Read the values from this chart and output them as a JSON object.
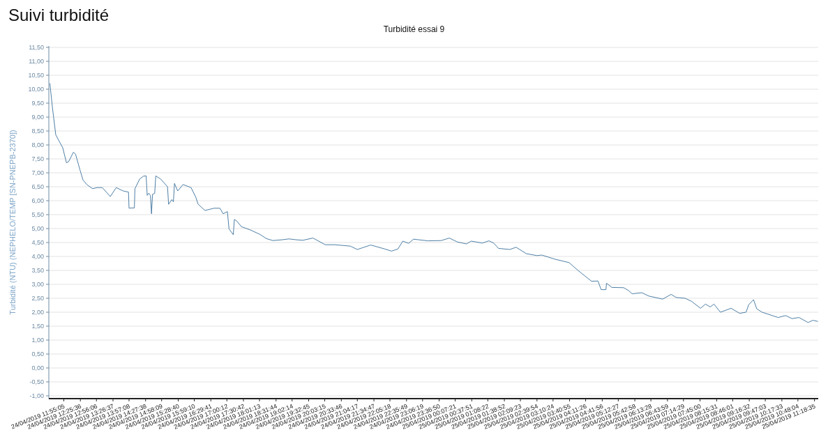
{
  "chart_data": {
    "type": "line",
    "title": "Suivi turbidité",
    "subtitle": "Turbidité essai 9",
    "ylabel": "Turbidité (NTU) (NEPHELO/TEMP [SN-PNEPB-2370])",
    "series": [
      {
        "color": "#4f7fa6",
        "x": [
          "2019-04-24T11:29",
          "2019-04-24T11:34",
          "2019-04-24T11:40",
          "2019-04-24T11:53",
          "2019-04-24T12:00",
          "2019-04-24T12:04",
          "2019-04-24T12:13",
          "2019-04-24T12:17",
          "2019-04-24T12:25",
          "2019-04-24T12:31",
          "2019-04-24T12:38",
          "2019-04-24T12:49",
          "2019-04-24T12:57",
          "2019-04-24T13:07",
          "2019-04-24T13:22",
          "2019-04-24T13:33",
          "2019-04-24T13:46",
          "2019-04-24T13:56",
          "2019-04-24T13:57",
          "2019-04-24T14:01",
          "2019-04-24T14:07",
          "2019-04-24T14:08",
          "2019-04-24T14:17",
          "2019-04-24T14:24",
          "2019-04-24T14:29",
          "2019-04-24T14:31",
          "2019-04-24T14:34",
          "2019-04-24T14:37",
          "2019-04-24T14:39",
          "2019-04-24T14:41",
          "2019-04-24T14:45",
          "2019-04-24T14:47",
          "2019-04-24T14:56",
          "2019-04-24T15:09",
          "2019-04-24T15:11",
          "2019-04-24T15:17",
          "2019-04-24T15:20",
          "2019-04-24T15:22",
          "2019-04-24T15:28",
          "2019-04-24T15:38",
          "2019-04-24T15:49",
          "2019-04-24T15:53",
          "2019-04-24T16:02",
          "2019-04-24T16:06",
          "2019-04-24T16:19",
          "2019-04-24T16:36",
          "2019-04-24T16:47",
          "2019-04-24T16:53",
          "2019-04-24T17:01",
          "2019-04-24T17:04",
          "2019-04-24T17:12",
          "2019-04-24T17:14",
          "2019-04-24T17:19",
          "2019-04-24T17:27",
          "2019-04-24T17:44",
          "2019-04-24T18:01",
          "2019-04-24T18:14",
          "2019-04-24T18:26",
          "2019-04-24T18:44",
          "2019-04-24T18:56",
          "2019-04-24T19:09",
          "2019-04-24T19:22",
          "2019-04-24T19:41",
          "2019-04-24T20:04",
          "2019-04-24T20:22",
          "2019-04-24T20:51",
          "2019-04-24T21:04",
          "2019-04-24T21:29",
          "2019-04-24T21:55",
          "2019-04-24T22:08",
          "2019-04-24T22:20",
          "2019-04-24T22:29",
          "2019-04-24T22:40",
          "2019-04-24T22:49",
          "2019-04-24T23:16",
          "2019-04-24T23:41",
          "2019-04-24T23:56",
          "2019-04-25T00:11",
          "2019-04-25T00:28",
          "2019-04-25T00:37",
          "2019-04-25T00:58",
          "2019-04-25T01:10",
          "2019-04-25T01:19",
          "2019-04-25T01:28",
          "2019-04-25T01:49",
          "2019-04-25T02:01",
          "2019-04-25T02:20",
          "2019-04-25T02:40",
          "2019-04-25T02:49",
          "2019-04-25T03:14",
          "2019-04-25T03:40",
          "2019-04-25T03:56",
          "2019-04-25T04:22",
          "2019-04-25T04:34",
          "2019-04-25T04:40",
          "2019-04-25T04:49",
          "2019-04-25T04:50",
          "2019-04-25T05:00",
          "2019-04-25T05:22",
          "2019-04-25T05:31",
          "2019-04-25T05:38",
          "2019-04-25T05:56",
          "2019-04-25T06:09",
          "2019-04-25T06:35",
          "2019-04-25T06:51",
          "2019-04-25T07:00",
          "2019-04-25T07:17",
          "2019-04-25T07:29",
          "2019-04-25T07:46",
          "2019-04-25T07:55",
          "2019-04-25T08:04",
          "2019-04-25T08:11",
          "2019-04-25T08:23",
          "2019-04-25T08:43",
          "2019-04-25T08:59",
          "2019-04-25T09:11",
          "2019-04-25T09:16",
          "2019-04-25T09:25",
          "2019-04-25T09:31",
          "2019-04-25T09:41",
          "2019-04-25T10:11",
          "2019-04-25T10:25",
          "2019-04-25T10:37",
          "2019-04-25T10:50",
          "2019-04-25T11:07",
          "2019-04-25T11:16",
          "2019-04-25T11:25"
        ],
        "values": [
          10.2,
          9.3,
          8.36,
          7.9,
          7.36,
          7.4,
          7.74,
          7.67,
          7.12,
          6.74,
          6.58,
          6.43,
          6.47,
          6.47,
          6.15,
          6.47,
          6.35,
          6.31,
          5.73,
          5.74,
          5.74,
          6.43,
          6.78,
          6.88,
          6.89,
          6.19,
          6.27,
          6.19,
          5.53,
          6.23,
          6.26,
          6.89,
          6.78,
          6.5,
          5.87,
          6.04,
          5.96,
          6.62,
          6.35,
          6.58,
          6.5,
          6.47,
          6.12,
          5.88,
          5.65,
          5.73,
          5.73,
          5.53,
          5.61,
          4.99,
          4.78,
          5.33,
          5.26,
          5.07,
          4.95,
          4.8,
          4.64,
          4.57,
          4.6,
          4.63,
          4.6,
          4.58,
          4.66,
          4.42,
          4.42,
          4.37,
          4.25,
          4.41,
          4.27,
          4.19,
          4.27,
          4.55,
          4.47,
          4.62,
          4.56,
          4.57,
          4.66,
          4.52,
          4.45,
          4.55,
          4.48,
          4.56,
          4.48,
          4.29,
          4.25,
          4.33,
          4.1,
          4.03,
          4.05,
          3.9,
          3.78,
          3.51,
          3.11,
          3.12,
          2.81,
          2.81,
          3.04,
          2.89,
          2.88,
          2.78,
          2.66,
          2.7,
          2.58,
          2.47,
          2.64,
          2.53,
          2.5,
          2.39,
          2.14,
          2.29,
          2.19,
          2.29,
          2.0,
          2.14,
          1.96,
          2.0,
          2.27,
          2.45,
          2.12,
          2.0,
          1.81,
          1.88,
          1.77,
          1.81,
          1.63,
          1.71,
          1.67
        ]
      }
    ],
    "xlim": [
      "2019-04-24T11:27",
      "2019-04-25T11:26"
    ],
    "xticks": [
      {
        "value": "2019-04-24T11:55",
        "label": "24/04/2019 11:55:05"
      },
      {
        "value": "2019-04-24T12:26",
        "label": "24/04/2019 12:25:36"
      },
      {
        "value": "2019-04-24T12:56",
        "label": "24/04/2019 12:56:06"
      },
      {
        "value": "2019-04-24T13:27",
        "label": "24/04/2019 13:26:37"
      },
      {
        "value": "2019-04-24T13:57",
        "label": "24/04/2019 13:57:08"
      },
      {
        "value": "2019-04-24T14:28",
        "label": "24/04/2019 14:27:38"
      },
      {
        "value": "2019-04-24T14:58",
        "label": "24/04/2019 14:58:09"
      },
      {
        "value": "2019-04-24T15:29",
        "label": "24/04/2019 15:28:40"
      },
      {
        "value": "2019-04-24T15:59",
        "label": "24/04/2019 15:59:10"
      },
      {
        "value": "2019-04-24T16:30",
        "label": "24/04/2019 16:29:41"
      },
      {
        "value": "2019-04-24T17:00",
        "label": "24/04/2019 17:00:12"
      },
      {
        "value": "2019-04-24T17:31",
        "label": "24/04/2019 17:30:42"
      },
      {
        "value": "2019-04-24T18:01",
        "label": "24/04/2019 18:01:13"
      },
      {
        "value": "2019-04-24T18:32",
        "label": "24/04/2019 18:31:44"
      },
      {
        "value": "2019-04-24T19:02",
        "label": "24/04/2019 19:02:14"
      },
      {
        "value": "2019-04-24T19:33",
        "label": "24/04/2019 19:32:45"
      },
      {
        "value": "2019-04-24T20:03",
        "label": "24/04/2019 20:03:15"
      },
      {
        "value": "2019-04-24T20:34",
        "label": "24/04/2019 20:33:46"
      },
      {
        "value": "2019-04-24T21:04",
        "label": "24/04/2019 21:04:17"
      },
      {
        "value": "2019-04-24T21:35",
        "label": "24/04/2019 21:34:47"
      },
      {
        "value": "2019-04-24T22:05",
        "label": "24/04/2019 22:05:18"
      },
      {
        "value": "2019-04-24T22:36",
        "label": "24/04/2019 22:35:49"
      },
      {
        "value": "2019-04-24T23:06",
        "label": "24/04/2019 23:06:19"
      },
      {
        "value": "2019-04-24T23:37",
        "label": "24/04/2019 23:36:50"
      },
      {
        "value": "2019-04-25T00:07",
        "label": "25/04/2019 00:07:21"
      },
      {
        "value": "2019-04-25T00:38",
        "label": "25/04/2019 00:37:51"
      },
      {
        "value": "2019-04-25T01:08",
        "label": "25/04/2019 01:08:22"
      },
      {
        "value": "2019-04-25T01:39",
        "label": "25/04/2019 01:38:52"
      },
      {
        "value": "2019-04-25T02:09",
        "label": "25/04/2019 02:09:23"
      },
      {
        "value": "2019-04-25T02:40",
        "label": "25/04/2019 02:39:54"
      },
      {
        "value": "2019-04-25T03:10",
        "label": "25/04/2019 03:10:24"
      },
      {
        "value": "2019-04-25T03:41",
        "label": "25/04/2019 03:40:55"
      },
      {
        "value": "2019-04-25T04:11",
        "label": "25/04/2019 04:11:26"
      },
      {
        "value": "2019-04-25T04:42",
        "label": "25/04/2019 04:41:56"
      },
      {
        "value": "2019-04-25T05:12",
        "label": "25/04/2019 05:12:27"
      },
      {
        "value": "2019-04-25T05:43",
        "label": "25/04/2019 05:42:58"
      },
      {
        "value": "2019-04-25T06:13",
        "label": "25/04/2019 06:13:28"
      },
      {
        "value": "2019-04-25T06:44",
        "label": "25/04/2019 06:43:59"
      },
      {
        "value": "2019-04-25T07:14",
        "label": "25/04/2019 07:14:29"
      },
      {
        "value": "2019-04-25T07:45",
        "label": "25/04/2019 07:45:00"
      },
      {
        "value": "2019-04-25T08:16",
        "label": "25/04/2019 08:15:31"
      },
      {
        "value": "2019-04-25T08:46",
        "label": "25/04/2019 08:46:01"
      },
      {
        "value": "2019-04-25T09:17",
        "label": "25/04/2019 09:16:32"
      },
      {
        "value": "2019-04-25T09:47",
        "label": "25/04/2019 09:47:03"
      },
      {
        "value": "2019-04-25T10:18",
        "label": "25/04/2019 10:17:33"
      },
      {
        "value": "2019-04-25T10:48",
        "label": "25/04/2019 10:48:04"
      },
      {
        "value": "2019-04-25T11:19",
        "label": "25/04/2019 11:18:35"
      }
    ],
    "ylim": [
      -1.1,
      11.55
    ],
    "yticks": [
      {
        "value": -1,
        "label": "-1,00"
      },
      {
        "value": -0.5,
        "label": "-0,50"
      },
      {
        "value": 0,
        "label": "0,00"
      },
      {
        "value": 0.5,
        "label": "0,50"
      },
      {
        "value": 1,
        "label": "1,00"
      },
      {
        "value": 1.5,
        "label": "1,50"
      },
      {
        "value": 2,
        "label": "2,00"
      },
      {
        "value": 2.5,
        "label": "2,50"
      },
      {
        "value": 3,
        "label": "3,00"
      },
      {
        "value": 3.5,
        "label": "3,50"
      },
      {
        "value": 4,
        "label": "4,00"
      },
      {
        "value": 4.5,
        "label": "4,50"
      },
      {
        "value": 5,
        "label": "5,00"
      },
      {
        "value": 5.5,
        "label": "5,50"
      },
      {
        "value": 6,
        "label": "6,00"
      },
      {
        "value": 6.5,
        "label": "6,50"
      },
      {
        "value": 7,
        "label": "7,00"
      },
      {
        "value": 7.5,
        "label": "7,50"
      },
      {
        "value": 8,
        "label": "8,00"
      },
      {
        "value": 8.5,
        "label": "8,50"
      },
      {
        "value": 9,
        "label": "9,00"
      },
      {
        "value": 9.5,
        "label": "9,50"
      },
      {
        "value": 10,
        "label": "10,00"
      },
      {
        "value": 10.5,
        "label": "10,50"
      },
      {
        "value": 11,
        "label": "11,00"
      },
      {
        "value": 11.5,
        "label": "11,50"
      }
    ],
    "grid": "y",
    "marker": "none",
    "line_style": "solid"
  }
}
